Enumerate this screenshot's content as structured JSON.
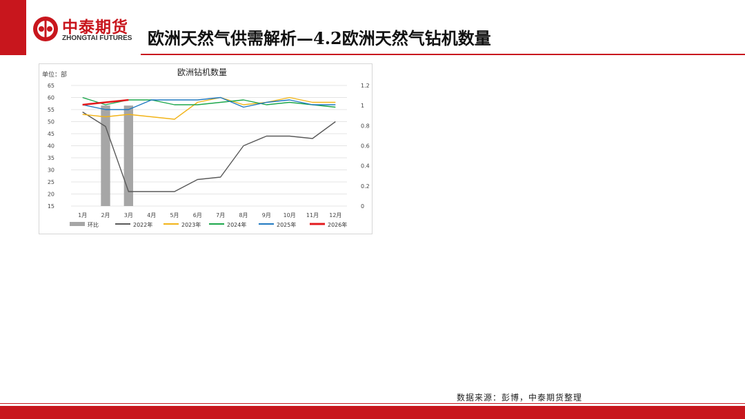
{
  "header": {
    "logo_cn": "中泰期货",
    "logo_en": "ZHONGTAI FUTURES",
    "title": "欧洲天然气供需解析—4.2欧洲天然气钻机数量"
  },
  "footer": {
    "source": "数据来源：彭博，中泰期货整理"
  },
  "colors": {
    "brand_red": "#c8161d",
    "bar": "#a6a6a6",
    "s2022": "#595959",
    "s2023": "#f2b316",
    "s2024": "#1aa64a",
    "s2025": "#1f78c0",
    "s2026": "#e3191c"
  },
  "chart_data": {
    "type": "line",
    "title": "欧洲钻机数量",
    "unit_label": "单位：部",
    "categories": [
      "1月",
      "2月",
      "3月",
      "4月",
      "5月",
      "6月",
      "7月",
      "8月",
      "9月",
      "10月",
      "11月",
      "12月"
    ],
    "ylim": [
      15,
      65
    ],
    "yticks": [
      "15",
      "20",
      "25",
      "30",
      "35",
      "40",
      "45",
      "50",
      "55",
      "60",
      "65"
    ],
    "y2lim": [
      0,
      1.2
    ],
    "y2ticks": [
      "0",
      "0.2",
      "0.4",
      "0.6",
      "0.8",
      "1",
      "1.2"
    ],
    "grid": true,
    "legend_position": "bottom",
    "bar_series": {
      "name": "环比",
      "axis": "right",
      "values": [
        null,
        1.0,
        1.0,
        null,
        null,
        null,
        null,
        null,
        null,
        null,
        null,
        null
      ]
    },
    "series": [
      {
        "name": "2022年",
        "color": "#595959",
        "values": [
          54,
          48,
          21,
          21,
          21,
          26,
          27,
          40,
          44,
          44,
          43,
          50
        ]
      },
      {
        "name": "2023年",
        "color": "#f2b316",
        "values": [
          53,
          52,
          53,
          52,
          51,
          58,
          60,
          57,
          58,
          60,
          58,
          58
        ]
      },
      {
        "name": "2024年",
        "color": "#1aa64a",
        "values": [
          60,
          57,
          59,
          59,
          57,
          57,
          58,
          59,
          57,
          58,
          57,
          56
        ]
      },
      {
        "name": "2025年",
        "color": "#1f78c0",
        "values": [
          57,
          55,
          55,
          59,
          59,
          59,
          60,
          56,
          58,
          59,
          57,
          57
        ]
      },
      {
        "name": "2026年",
        "color": "#e3191c",
        "values": [
          57,
          58,
          59,
          null,
          null,
          null,
          null,
          null,
          null,
          null,
          null,
          null
        ]
      }
    ]
  }
}
